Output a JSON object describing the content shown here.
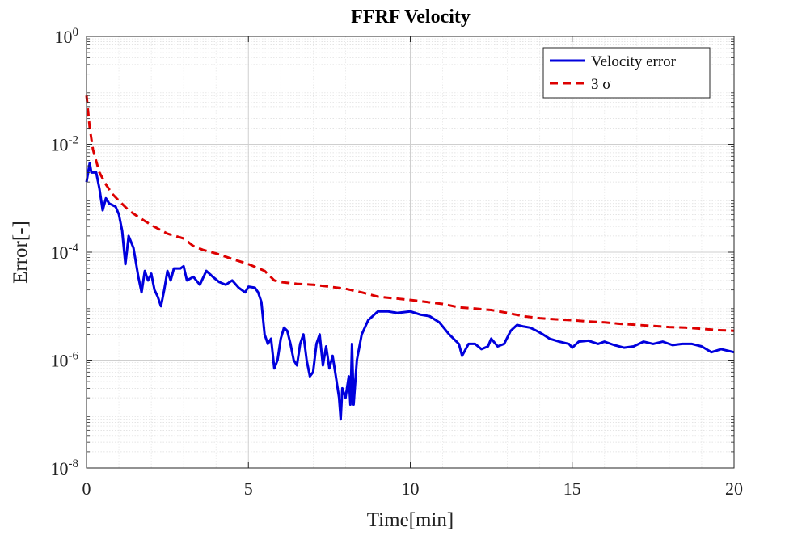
{
  "chart_data": {
    "type": "line",
    "title": "FFRF Velocity",
    "xlabel": "Time[min]",
    "ylabel": "Error[-]",
    "xlim": [
      0,
      20
    ],
    "ylim_log10": [
      -8,
      0
    ],
    "y_scale": "log",
    "grid": true,
    "minor_grid": true,
    "legend_position": "top-right",
    "x_ticks": [
      0,
      5,
      10,
      15,
      20
    ],
    "x_tick_labels": [
      "0",
      "5",
      "10",
      "15",
      "20"
    ],
    "y_tick_exponents": [
      0,
      -2,
      -4,
      -6,
      -8
    ],
    "y_tick_labels": [
      "10^0",
      "10^-2",
      "10^-4",
      "10^-6",
      "10^-8"
    ],
    "series": [
      {
        "name": "Velocity error",
        "color": "#0000dd",
        "style": "solid",
        "points": [
          [
            0.0,
            0.002
          ],
          [
            0.1,
            0.0045
          ],
          [
            0.15,
            0.003
          ],
          [
            0.3,
            0.003
          ],
          [
            0.4,
            0.0015
          ],
          [
            0.5,
            0.0006
          ],
          [
            0.6,
            0.001
          ],
          [
            0.7,
            0.0008
          ],
          [
            0.8,
            0.00075
          ],
          [
            0.9,
            0.0007
          ],
          [
            1.0,
            0.0005
          ],
          [
            1.1,
            0.00025
          ],
          [
            1.2,
            6e-05
          ],
          [
            1.3,
            0.0002
          ],
          [
            1.45,
            0.00012
          ],
          [
            1.6,
            3.5e-05
          ],
          [
            1.7,
            1.8e-05
          ],
          [
            1.8,
            4.5e-05
          ],
          [
            1.9,
            3e-05
          ],
          [
            2.0,
            4e-05
          ],
          [
            2.1,
            2e-05
          ],
          [
            2.2,
            1.5e-05
          ],
          [
            2.3,
            1e-05
          ],
          [
            2.4,
            2e-05
          ],
          [
            2.5,
            4.5e-05
          ],
          [
            2.6,
            3e-05
          ],
          [
            2.7,
            5e-05
          ],
          [
            2.9,
            5e-05
          ],
          [
            3.0,
            5.5e-05
          ],
          [
            3.1,
            3e-05
          ],
          [
            3.3,
            3.5e-05
          ],
          [
            3.5,
            2.5e-05
          ],
          [
            3.7,
            4.5e-05
          ],
          [
            3.9,
            3.5e-05
          ],
          [
            4.1,
            2.8e-05
          ],
          [
            4.3,
            2.5e-05
          ],
          [
            4.5,
            3e-05
          ],
          [
            4.7,
            2.2e-05
          ],
          [
            4.9,
            1.8e-05
          ],
          [
            5.0,
            2.3e-05
          ],
          [
            5.2,
            2.2e-05
          ],
          [
            5.3,
            1.8e-05
          ],
          [
            5.4,
            1.2e-05
          ],
          [
            5.5,
            3e-06
          ],
          [
            5.6,
            2e-06
          ],
          [
            5.7,
            2.5e-06
          ],
          [
            5.8,
            7e-07
          ],
          [
            5.9,
            1e-06
          ],
          [
            6.0,
            2.5e-06
          ],
          [
            6.1,
            4e-06
          ],
          [
            6.2,
            3.5e-06
          ],
          [
            6.3,
            2e-06
          ],
          [
            6.4,
            1e-06
          ],
          [
            6.5,
            8e-07
          ],
          [
            6.6,
            2e-06
          ],
          [
            6.7,
            3e-06
          ],
          [
            6.8,
            1e-06
          ],
          [
            6.9,
            5e-07
          ],
          [
            7.0,
            6e-07
          ],
          [
            7.1,
            2e-06
          ],
          [
            7.2,
            3e-06
          ],
          [
            7.3,
            8e-07
          ],
          [
            7.4,
            1.8e-06
          ],
          [
            7.5,
            7e-07
          ],
          [
            7.6,
            1.2e-06
          ],
          [
            7.7,
            5e-07
          ],
          [
            7.8,
            2e-07
          ],
          [
            7.85,
            8e-08
          ],
          [
            7.9,
            3e-07
          ],
          [
            8.0,
            2e-07
          ],
          [
            8.1,
            5e-07
          ],
          [
            8.15,
            1.5e-07
          ],
          [
            8.2,
            2e-06
          ],
          [
            8.25,
            1.5e-07
          ],
          [
            8.35,
            1e-06
          ],
          [
            8.5,
            3e-06
          ],
          [
            8.7,
            5.5e-06
          ],
          [
            9.0,
            8e-06
          ],
          [
            9.3,
            8e-06
          ],
          [
            9.6,
            7.5e-06
          ],
          [
            10.0,
            8e-06
          ],
          [
            10.3,
            7e-06
          ],
          [
            10.6,
            6.5e-06
          ],
          [
            10.9,
            5e-06
          ],
          [
            11.2,
            3e-06
          ],
          [
            11.5,
            2e-06
          ],
          [
            11.6,
            1.2e-06
          ],
          [
            11.8,
            2e-06
          ],
          [
            12.0,
            2e-06
          ],
          [
            12.2,
            1.6e-06
          ],
          [
            12.4,
            1.8e-06
          ],
          [
            12.5,
            2.5e-06
          ],
          [
            12.7,
            1.8e-06
          ],
          [
            12.9,
            2e-06
          ],
          [
            13.1,
            3.5e-06
          ],
          [
            13.3,
            4.5e-06
          ],
          [
            13.5,
            4.2e-06
          ],
          [
            13.7,
            4e-06
          ],
          [
            13.9,
            3.5e-06
          ],
          [
            14.1,
            3e-06
          ],
          [
            14.3,
            2.5e-06
          ],
          [
            14.6,
            2.2e-06
          ],
          [
            14.9,
            2e-06
          ],
          [
            15.0,
            1.7e-06
          ],
          [
            15.2,
            2.2e-06
          ],
          [
            15.5,
            2.3e-06
          ],
          [
            15.8,
            2e-06
          ],
          [
            16.0,
            2.2e-06
          ],
          [
            16.3,
            1.9e-06
          ],
          [
            16.6,
            1.7e-06
          ],
          [
            16.9,
            1.8e-06
          ],
          [
            17.2,
            2.2e-06
          ],
          [
            17.5,
            2e-06
          ],
          [
            17.8,
            2.2e-06
          ],
          [
            18.1,
            1.9e-06
          ],
          [
            18.4,
            2e-06
          ],
          [
            18.7,
            2e-06
          ],
          [
            19.0,
            1.8e-06
          ],
          [
            19.3,
            1.4e-06
          ],
          [
            19.6,
            1.6e-06
          ],
          [
            20.0,
            1.4e-06
          ]
        ]
      },
      {
        "name": "3 σ",
        "color": "#dd0000",
        "style": "dashed",
        "points": [
          [
            0.0,
            0.08
          ],
          [
            0.1,
            0.02
          ],
          [
            0.2,
            0.008
          ],
          [
            0.4,
            0.003
          ],
          [
            0.6,
            0.0018
          ],
          [
            0.8,
            0.0012
          ],
          [
            1.0,
            0.0009
          ],
          [
            1.3,
            0.0006
          ],
          [
            1.6,
            0.00045
          ],
          [
            2.0,
            0.00032
          ],
          [
            2.5,
            0.00022
          ],
          [
            3.0,
            0.00018
          ],
          [
            3.3,
            0.00013
          ],
          [
            3.6,
            0.00011
          ],
          [
            4.0,
            9.5e-05
          ],
          [
            4.5,
            7.5e-05
          ],
          [
            5.0,
            6e-05
          ],
          [
            5.5,
            4.5e-05
          ],
          [
            5.8,
            3e-05
          ],
          [
            6.0,
            2.8e-05
          ],
          [
            6.5,
            2.6e-05
          ],
          [
            7.0,
            2.5e-05
          ],
          [
            7.5,
            2.3e-05
          ],
          [
            8.0,
            2.1e-05
          ],
          [
            8.5,
            1.8e-05
          ],
          [
            9.0,
            1.5e-05
          ],
          [
            9.5,
            1.4e-05
          ],
          [
            10.0,
            1.3e-05
          ],
          [
            10.5,
            1.2e-05
          ],
          [
            11.0,
            1.1e-05
          ],
          [
            11.5,
            9.5e-06
          ],
          [
            12.0,
            9e-06
          ],
          [
            12.5,
            8.5e-06
          ],
          [
            13.0,
            7.5e-06
          ],
          [
            13.5,
            6.5e-06
          ],
          [
            14.0,
            6e-06
          ],
          [
            14.5,
            5.7e-06
          ],
          [
            15.0,
            5.5e-06
          ],
          [
            15.5,
            5.2e-06
          ],
          [
            16.0,
            5e-06
          ],
          [
            16.5,
            4.7e-06
          ],
          [
            17.0,
            4.5e-06
          ],
          [
            17.5,
            4.3e-06
          ],
          [
            18.0,
            4.1e-06
          ],
          [
            18.5,
            4e-06
          ],
          [
            19.0,
            3.8e-06
          ],
          [
            19.5,
            3.6e-06
          ],
          [
            20.0,
            3.5e-06
          ]
        ]
      }
    ]
  }
}
